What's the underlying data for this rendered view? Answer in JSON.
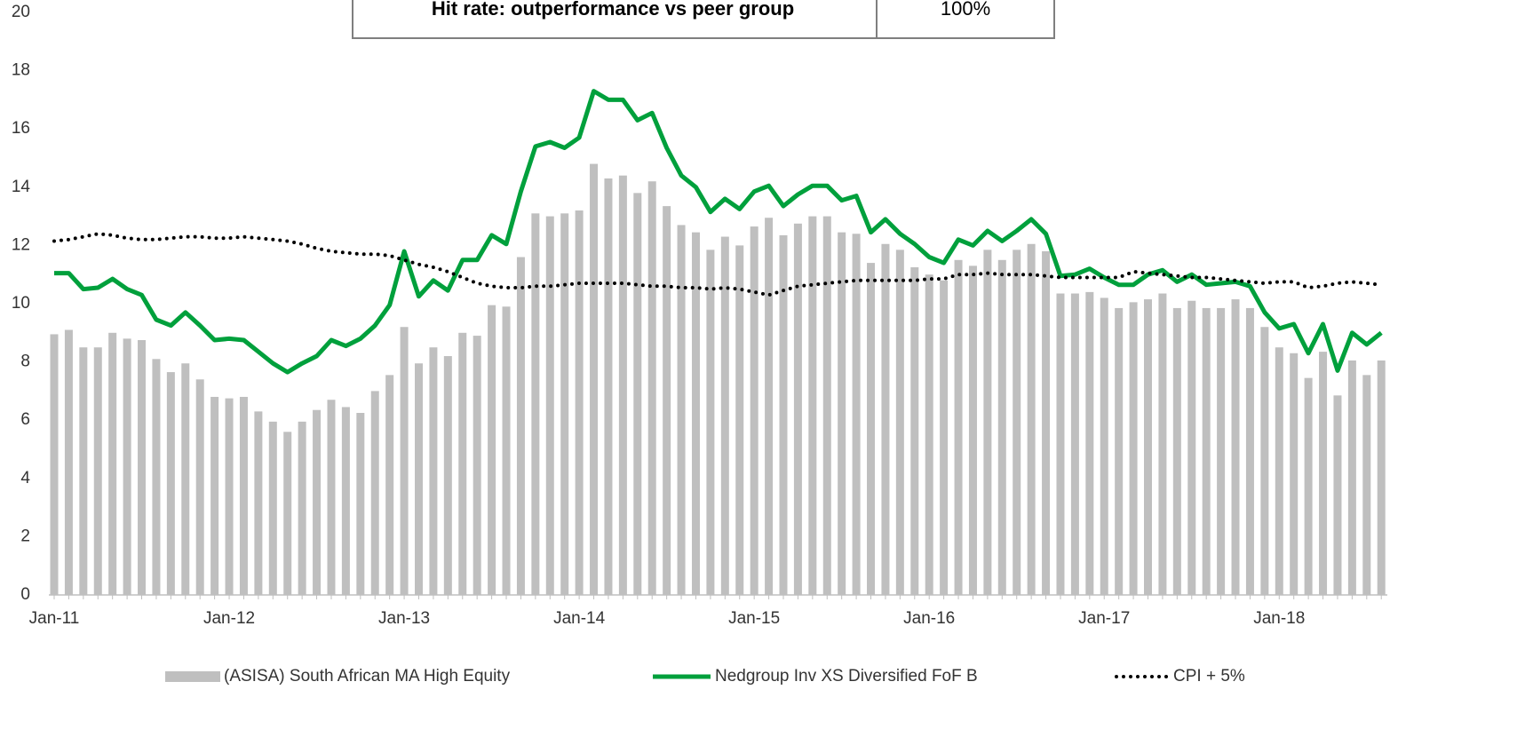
{
  "chart_data": {
    "type": "combo",
    "table": {
      "label": "Hit rate: outperformance vs peer group",
      "value": "100%"
    },
    "categories": [
      "Jan-11",
      null,
      null,
      null,
      null,
      null,
      null,
      null,
      null,
      null,
      null,
      null,
      "Jan-12",
      null,
      null,
      null,
      null,
      null,
      null,
      null,
      null,
      null,
      null,
      null,
      "Jan-13",
      null,
      null,
      null,
      null,
      null,
      null,
      null,
      null,
      null,
      null,
      null,
      "Jan-14",
      null,
      null,
      null,
      null,
      null,
      null,
      null,
      null,
      null,
      null,
      null,
      "Jan-15",
      null,
      null,
      null,
      null,
      null,
      null,
      null,
      null,
      null,
      null,
      null,
      "Jan-16",
      null,
      null,
      null,
      null,
      null,
      null,
      null,
      null,
      null,
      null,
      null,
      "Jan-17",
      null,
      null,
      null,
      null,
      null,
      null,
      null,
      null,
      null,
      null,
      null,
      "Jan-18",
      null,
      null,
      null,
      null,
      null,
      null,
      null
    ],
    "series": [
      {
        "name": "(ASISA) South African MA High Equity",
        "type": "bar",
        "color": "#bfbfbf",
        "values": [
          8.95,
          9.1,
          8.5,
          8.5,
          9.0,
          8.8,
          8.75,
          8.1,
          7.65,
          7.95,
          7.4,
          6.8,
          6.75,
          6.8,
          6.3,
          5.95,
          5.6,
          5.95,
          6.35,
          6.7,
          6.45,
          6.25,
          7.0,
          7.55,
          9.2,
          7.95,
          8.5,
          8.2,
          9.0,
          8.9,
          9.95,
          9.9,
          11.6,
          13.1,
          13.0,
          13.1,
          13.2,
          14.8,
          14.3,
          14.4,
          13.8,
          14.2,
          13.35,
          12.7,
          12.45,
          11.85,
          12.3,
          12.0,
          12.65,
          12.95,
          12.35,
          12.75,
          13.0,
          13.0,
          12.45,
          12.4,
          11.4,
          12.05,
          11.85,
          11.25,
          11.0,
          10.8,
          11.5,
          11.3,
          11.85,
          11.5,
          11.85,
          12.05,
          11.8,
          10.35,
          10.35,
          10.4,
          10.2,
          9.85,
          10.05,
          10.15,
          10.35,
          9.85,
          10.1,
          9.85,
          9.85,
          10.15,
          9.85,
          9.2,
          8.5,
          8.3,
          7.45,
          8.35,
          6.85,
          8.05,
          7.55,
          8.05
        ]
      },
      {
        "name": "Nedgroup Inv XS Diversified FoF B",
        "type": "line",
        "color": "#00a03c",
        "values": [
          11.05,
          11.05,
          10.5,
          10.55,
          10.85,
          10.5,
          10.3,
          9.45,
          9.25,
          9.7,
          9.25,
          8.75,
          8.8,
          8.75,
          8.35,
          7.95,
          7.65,
          7.95,
          8.2,
          8.75,
          8.55,
          8.8,
          9.25,
          9.95,
          11.8,
          10.25,
          10.8,
          10.45,
          11.5,
          11.5,
          12.35,
          12.05,
          13.85,
          15.4,
          15.55,
          15.35,
          15.7,
          17.3,
          17.0,
          17.0,
          16.3,
          16.55,
          15.35,
          14.4,
          14.0,
          13.15,
          13.6,
          13.25,
          13.85,
          14.05,
          13.35,
          13.75,
          14.05,
          14.05,
          13.55,
          13.7,
          12.45,
          12.9,
          12.4,
          12.05,
          11.6,
          11.4,
          12.2,
          12.0,
          12.5,
          12.15,
          12.5,
          12.9,
          12.4,
          10.95,
          11.0,
          11.2,
          10.9,
          10.65,
          10.65,
          11.0,
          11.15,
          10.75,
          11.0,
          10.65,
          10.7,
          10.75,
          10.6,
          9.7,
          9.15,
          9.3,
          8.3,
          9.3,
          7.7,
          9.0,
          8.6,
          9.0
        ]
      },
      {
        "name": "CPI + 5%",
        "type": "dotted",
        "color": "#000000",
        "values": [
          12.15,
          12.2,
          12.3,
          12.4,
          12.35,
          12.25,
          12.2,
          12.2,
          12.25,
          12.3,
          12.3,
          12.25,
          12.25,
          12.3,
          12.25,
          12.2,
          12.15,
          12.05,
          11.9,
          11.8,
          11.75,
          11.7,
          11.7,
          11.65,
          11.5,
          11.35,
          11.25,
          11.1,
          10.9,
          10.7,
          10.6,
          10.55,
          10.55,
          10.6,
          10.6,
          10.65,
          10.7,
          10.7,
          10.7,
          10.7,
          10.65,
          10.6,
          10.6,
          10.55,
          10.55,
          10.5,
          10.55,
          10.5,
          10.4,
          10.3,
          10.45,
          10.6,
          10.65,
          10.7,
          10.75,
          10.8,
          10.8,
          10.8,
          10.8,
          10.8,
          10.85,
          10.85,
          11.0,
          11.0,
          11.05,
          11.0,
          11.0,
          11.0,
          10.95,
          10.9,
          10.9,
          10.9,
          10.9,
          10.9,
          11.1,
          11.05,
          11.0,
          10.95,
          10.9,
          10.9,
          10.85,
          10.8,
          10.75,
          10.7,
          10.75,
          10.75,
          10.55,
          10.6,
          10.7,
          10.75,
          10.7,
          10.65
        ]
      }
    ],
    "ylim": [
      0,
      20
    ],
    "yticks": [
      0,
      2,
      4,
      6,
      8,
      10,
      12,
      14,
      16,
      18,
      20
    ],
    "grid": false,
    "legend": "bottom"
  }
}
